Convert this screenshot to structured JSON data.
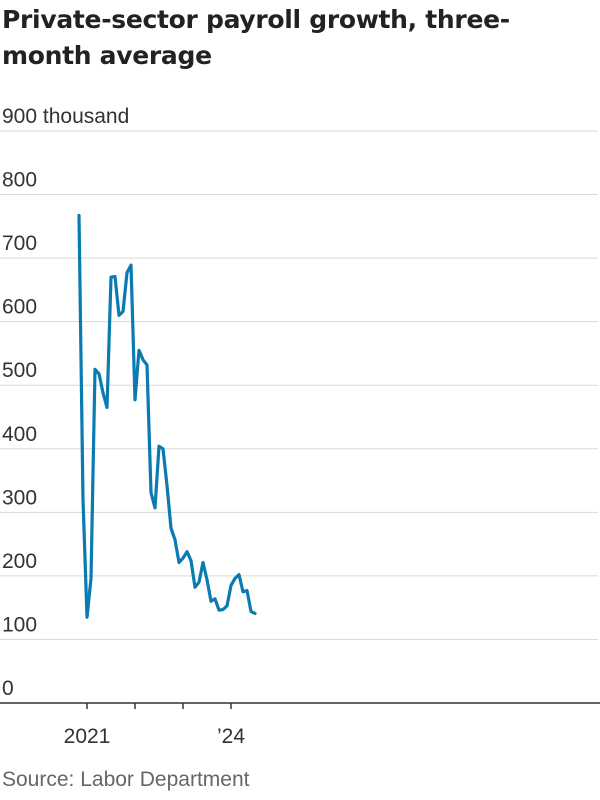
{
  "title": "Private-sector payroll growth, three-month average",
  "source": "Source: Labor Department",
  "colors": {
    "line": "#0a7bb0",
    "grid": "#d9d9d9",
    "baseline": "#333333"
  },
  "chart_data": {
    "type": "line",
    "title": "Private-sector payroll growth, three-month average",
    "ylabel": "",
    "y_unit_label": "900 thousand",
    "ylim": [
      0,
      900
    ],
    "y_ticks": [
      0,
      100,
      200,
      300,
      400,
      500,
      600,
      700,
      800,
      900
    ],
    "y_tick_labels": [
      "0",
      "100",
      "200",
      "300",
      "400",
      "500",
      "600",
      "700",
      "800",
      "900 thousand"
    ],
    "x_tick_labels": [
      "2021",
      "’24"
    ],
    "grid": true,
    "series": [
      {
        "x": [
          "2020-11",
          "2020-12",
          "2021-01",
          "2021-02",
          "2021-03",
          "2021-04",
          "2021-05",
          "2021-06",
          "2021-07",
          "2021-08",
          "2021-09",
          "2021-10",
          "2021-11",
          "2021-12",
          "2022-01",
          "2022-02",
          "2022-03",
          "2022-04",
          "2022-05",
          "2022-06",
          "2022-07",
          "2022-08",
          "2022-09",
          "2022-10",
          "2022-11",
          "2022-12",
          "2023-01",
          "2023-02",
          "2023-03",
          "2023-04",
          "2023-05",
          "2023-06",
          "2023-07",
          "2023-08",
          "2023-09",
          "2023-10",
          "2023-11",
          "2023-12",
          "2024-01",
          "2024-02",
          "2024-03",
          "2024-04",
          "2024-05",
          "2024-06",
          "2024-07"
        ],
        "values": [
          767,
          320,
          135,
          196,
          525,
          518,
          488,
          465,
          670,
          671,
          610,
          616,
          677,
          689,
          477,
          555,
          540,
          532,
          331,
          307,
          404,
          400,
          342,
          275,
          257,
          221,
          228,
          238,
          224,
          182,
          190,
          221,
          194,
          160,
          164,
          146,
          147,
          153,
          185,
          196,
          202,
          175,
          177,
          144,
          141
        ]
      }
    ]
  }
}
